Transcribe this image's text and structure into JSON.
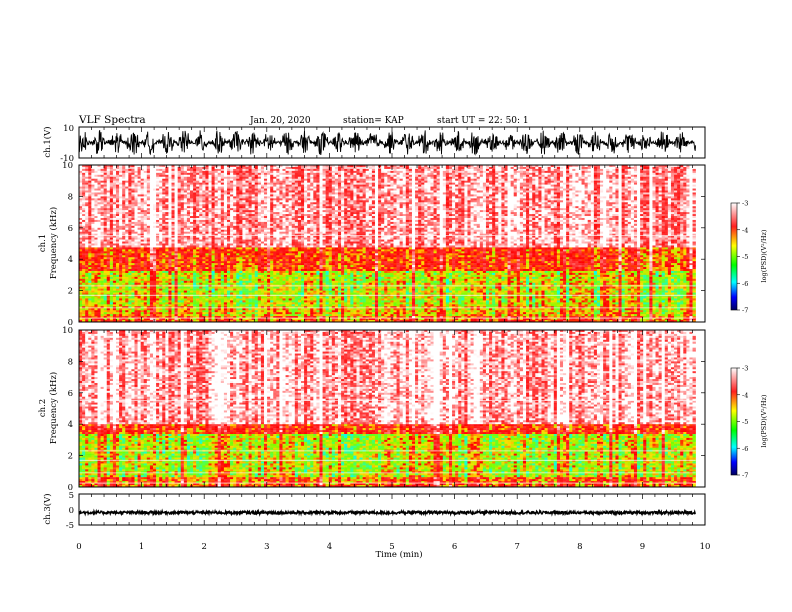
{
  "header": {
    "title": "VLF Spectra",
    "date": "Jan. 20, 2020",
    "station": "station= KAP",
    "start": "start  UT =   22: 50: 1"
  },
  "panels": {
    "ch1_wave_ylabel": "ch.1(V)",
    "ch1_spec_ylabel": "ch.1\nFrequency (kHz)",
    "ch2_spec_ylabel": "ch.2\nFrequency (kHz)",
    "ch3_wave_ylabel": "ch.3(V)"
  },
  "colorbar": {
    "label": "log(PSD)(V²/Hz)",
    "ticks": [
      "-3",
      "-4",
      "-5",
      "-6",
      "-7"
    ],
    "colors": [
      "#ffffff",
      "#ff0000",
      "#ffff00",
      "#00ff00",
      "#00ffff",
      "#0000ff",
      "#000080"
    ]
  },
  "chart_data": [
    {
      "type": "line",
      "name": "ch1-waveform",
      "ylabel": "ch.1(V)",
      "xlim": [
        0,
        10
      ],
      "ylim": [
        -10,
        10
      ],
      "yticks": [
        "10",
        "-10"
      ],
      "data_extent_min": [
        0,
        9.85
      ],
      "description_values": {
        "amplitude_envelope_V": [
          -8,
          8
        ]
      }
    },
    {
      "type": "heatmap",
      "name": "ch1-spectrogram",
      "xlabel": "",
      "ylabel": "ch.1 Frequency (kHz)",
      "xlim": [
        0,
        10
      ],
      "ylim": [
        0,
        10
      ],
      "yticks": [
        "0",
        "2",
        "4",
        "6",
        "8",
        "10"
      ],
      "data_extent_min": [
        0,
        9.85
      ],
      "bands_kHz_logPSD": [
        {
          "f": [
            0,
            0.4
          ],
          "level": -4.3
        },
        {
          "f": [
            0.4,
            1.0
          ],
          "level": -4.6
        },
        {
          "f": [
            1.0,
            3.2
          ],
          "level": -4.8
        },
        {
          "f": [
            3.2,
            4.8
          ],
          "level": -4.2
        },
        {
          "f": [
            4.8,
            10
          ],
          "level": -3.3
        }
      ]
    },
    {
      "type": "heatmap",
      "name": "ch2-spectrogram",
      "xlabel": "",
      "ylabel": "ch.2 Frequency (kHz)",
      "xlim": [
        0,
        10
      ],
      "ylim": [
        0,
        10
      ],
      "yticks": [
        "0",
        "2",
        "4",
        "6",
        "8",
        "10"
      ],
      "data_extent_min": [
        0,
        9.85
      ],
      "bands_kHz_logPSD": [
        {
          "f": [
            0,
            0.6
          ],
          "level": -4.3
        },
        {
          "f": [
            0.6,
            3.4
          ],
          "level": -4.8
        },
        {
          "f": [
            3.4,
            4.0
          ],
          "level": -4.1
        },
        {
          "f": [
            4.0,
            10
          ],
          "level": -3.2
        }
      ]
    },
    {
      "type": "line",
      "name": "ch3-waveform",
      "xlabel": "Time (min)",
      "ylabel": "ch.3(V)",
      "xlim": [
        0,
        10
      ],
      "ylim": [
        -5,
        5
      ],
      "xticks": [
        "0",
        "1",
        "2",
        "3",
        "4",
        "5",
        "6",
        "7",
        "8",
        "9",
        "10"
      ],
      "yticks": [
        "5",
        "0",
        "-5"
      ],
      "data_extent_min": [
        0,
        9.85
      ],
      "description_values": {
        "amplitude_envelope_V": [
          -1.5,
          -0.5
        ]
      }
    }
  ]
}
